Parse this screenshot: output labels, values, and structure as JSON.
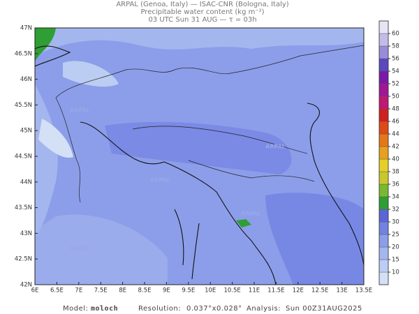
{
  "header": {
    "line1": "ARPAL (Genoa, Italy)  —  ISAC-CNR (Bologna, Italy)",
    "line2": "Precipitable water content (kg m⁻²)",
    "line3": "03 UTC Sun 31 AUG  —  τ = 03h"
  },
  "map": {
    "lat_labels": [
      "47N",
      "46.5N",
      "46N",
      "45.5N",
      "45N",
      "44.5N",
      "44N",
      "43.5N",
      "43N",
      "42.5N",
      "42N"
    ],
    "lon_labels": [
      "6E",
      "6.5E",
      "7E",
      "7.5E",
      "8E",
      "8.5E",
      "9E",
      "9.5E",
      "10E",
      "10.5E",
      "11E",
      "11.5E",
      "12E",
      "12.5E",
      "13E",
      "13.5E"
    ],
    "watermark": "ARPAL"
  },
  "colorbar": {
    "ticks": [
      10,
      15,
      20,
      25,
      30,
      32,
      34,
      36,
      38,
      40,
      42,
      44,
      46,
      48,
      50,
      52,
      54,
      56,
      58,
      60
    ],
    "colors": [
      "#d4e0f6",
      "#bccdf3",
      "#a4b6ee",
      "#8c9ee9",
      "#7282e2",
      "#5a66d8",
      "#2f9e34",
      "#7ab92f",
      "#c8c82c",
      "#e6d028",
      "#e8a020",
      "#e47818",
      "#e04818",
      "#d02020",
      "#c01874",
      "#a01894",
      "#7a1aa6",
      "#5a48c0",
      "#9a8cd8",
      "#c4bce8",
      "#e8e4f4"
    ]
  },
  "footer": {
    "model_label": "Model:",
    "model": "moloch",
    "res_label": "Resolution:",
    "res": "0.037°x0.028°",
    "analysis_label": "Analysis:",
    "analysis": "Sun 00Z31AUG2025"
  }
}
